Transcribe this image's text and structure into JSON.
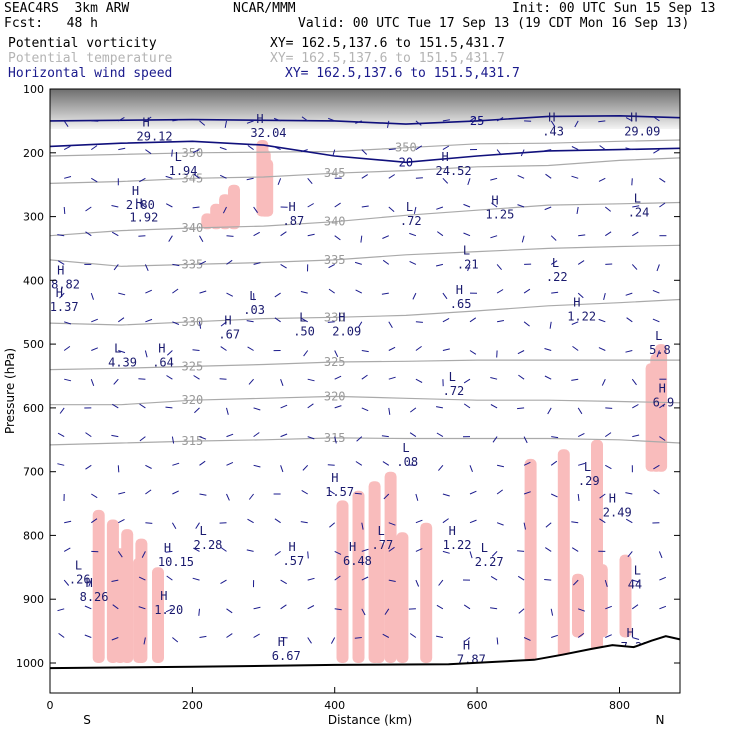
{
  "header": {
    "model": "SEAC4RS  3km ARW",
    "org": "NCAR/MMM",
    "init": "Init: 00 UTC Sun 15 Sep 13",
    "fcst": "Fcst:   48 h",
    "valid": "Valid: 00 UTC Tue 17 Sep 13 (19 CDT Mon 16 Sep 13)"
  },
  "legend": [
    {
      "name": "Potential vorticity",
      "xy": "XY= 162.5,137.6 to 151.5,431.7",
      "color": "#000000"
    },
    {
      "name": "Potential temperature",
      "xy": "XY= 162.5,137.6 to 151.5,431.7",
      "color": "#b4b4b4"
    },
    {
      "name": "Horizontal wind speed",
      "xy": "XY= 162.5,137.6 to 151.5,431.7",
      "color": "#1a1a8c"
    }
  ],
  "chart_data": {
    "type": "cross-section",
    "xlabel": "Distance (km)",
    "ylabel": "Pressure (hPa)",
    "x_ticks": [
      0,
      200,
      400,
      600,
      800
    ],
    "y_ticks": [
      100,
      200,
      300,
      400,
      500,
      600,
      700,
      800,
      900,
      1000
    ],
    "xlim": [
      0,
      885
    ],
    "ylim": [
      1000,
      100
    ],
    "end_labels": {
      "left": "S",
      "right": "N"
    },
    "theta_contours": [
      {
        "label": "315",
        "points": [
          [
            0,
            658
          ],
          [
            100,
            655
          ],
          [
            200,
            652
          ],
          [
            300,
            650
          ],
          [
            400,
            647
          ],
          [
            500,
            648
          ],
          [
            600,
            648
          ],
          [
            700,
            648
          ],
          [
            800,
            650
          ],
          [
            885,
            655
          ]
        ]
      },
      {
        "label": "320",
        "points": [
          [
            0,
            595
          ],
          [
            100,
            595
          ],
          [
            200,
            588
          ],
          [
            300,
            585
          ],
          [
            400,
            582
          ],
          [
            500,
            585
          ],
          [
            600,
            588
          ],
          [
            700,
            588
          ],
          [
            800,
            590
          ],
          [
            885,
            592
          ]
        ]
      },
      {
        "label": "325",
        "points": [
          [
            0,
            540
          ],
          [
            100,
            538
          ],
          [
            200,
            535
          ],
          [
            300,
            532
          ],
          [
            400,
            528
          ],
          [
            500,
            527
          ],
          [
            600,
            525
          ],
          [
            700,
            525
          ],
          [
            800,
            525
          ],
          [
            885,
            525
          ]
        ]
      },
      {
        "label": "330",
        "points": [
          [
            0,
            467
          ],
          [
            100,
            470
          ],
          [
            200,
            465
          ],
          [
            300,
            460
          ],
          [
            400,
            458
          ],
          [
            500,
            455
          ],
          [
            600,
            448
          ],
          [
            700,
            440
          ],
          [
            800,
            435
          ],
          [
            885,
            430
          ]
        ]
      },
      {
        "label": "335",
        "points": [
          [
            0,
            368
          ],
          [
            100,
            378
          ],
          [
            200,
            375
          ],
          [
            300,
            372
          ],
          [
            400,
            368
          ],
          [
            500,
            360
          ],
          [
            600,
            355
          ],
          [
            700,
            350
          ],
          [
            800,
            347
          ],
          [
            885,
            345
          ]
        ]
      },
      {
        "label": "340",
        "points": [
          [
            0,
            330
          ],
          [
            100,
            322
          ],
          [
            200,
            318
          ],
          [
            300,
            315
          ],
          [
            400,
            308
          ],
          [
            500,
            298
          ],
          [
            600,
            290
          ],
          [
            700,
            282
          ],
          [
            800,
            280
          ],
          [
            885,
            278
          ]
        ]
      },
      {
        "label": "345",
        "points": [
          [
            0,
            248
          ],
          [
            100,
            245
          ],
          [
            200,
            240
          ],
          [
            300,
            238
          ],
          [
            400,
            232
          ],
          [
            500,
            228
          ],
          [
            600,
            222
          ],
          [
            700,
            220
          ],
          [
            800,
            212
          ],
          [
            885,
            208
          ]
        ]
      },
      {
        "label": "350",
        "points": [
          [
            0,
            205
          ],
          [
            200,
            200
          ],
          [
            400,
            198
          ],
          [
            500,
            192
          ],
          [
            600,
            186
          ],
          [
            700,
            185
          ],
          [
            800,
            182
          ],
          [
            885,
            180
          ]
        ]
      }
    ],
    "wind_contours": [
      {
        "label": "20",
        "points": [
          [
            0,
            190
          ],
          [
            100,
            185
          ],
          [
            200,
            182
          ],
          [
            300,
            188
          ],
          [
            400,
            205
          ],
          [
            500,
            215
          ],
          [
            600,
            205
          ],
          [
            700,
            197
          ],
          [
            800,
            195
          ],
          [
            885,
            193
          ]
        ]
      },
      {
        "label": "25",
        "points": [
          [
            0,
            150
          ],
          [
            200,
            148
          ],
          [
            400,
            150
          ],
          [
            500,
            155
          ],
          [
            600,
            150
          ],
          [
            700,
            143
          ],
          [
            800,
            142
          ],
          [
            885,
            145
          ]
        ]
      }
    ],
    "extrema": [
      {
        "kind": "H",
        "value": "29.12",
        "x": 130,
        "p": 178
      },
      {
        "kind": "H",
        "value": "32.04",
        "x": 290,
        "p": 172
      },
      {
        "kind": "L",
        "value": "1.94",
        "x": 175,
        "p": 232
      },
      {
        "kind": "H",
        "value": "24.52",
        "x": 550,
        "p": 232
      },
      {
        "kind": "H",
        "value": ".43",
        "x": 700,
        "p": 170
      },
      {
        "kind": "H",
        "value": "29.09",
        "x": 815,
        "p": 170
      },
      {
        "kind": "H",
        "value": "2.80",
        "x": 115,
        "p": 285
      },
      {
        "kind": "H",
        "value": "1.92",
        "x": 120,
        "p": 305
      },
      {
        "kind": "H",
        "value": ".87",
        "x": 335,
        "p": 310
      },
      {
        "kind": "L",
        "value": ".72",
        "x": 500,
        "p": 310
      },
      {
        "kind": "H",
        "value": "1.25",
        "x": 620,
        "p": 300
      },
      {
        "kind": "L",
        "value": ".24",
        "x": 820,
        "p": 297
      },
      {
        "kind": "L",
        "value": ".21",
        "x": 580,
        "p": 378
      },
      {
        "kind": "L",
        "value": ".22",
        "x": 705,
        "p": 398
      },
      {
        "kind": "H",
        "value": "8.82",
        "x": 10,
        "p": 410
      },
      {
        "kind": "H",
        "value": "1.37",
        "x": 8,
        "p": 445
      },
      {
        "kind": "L",
        "value": ".03",
        "x": 280,
        "p": 450
      },
      {
        "kind": "H",
        "value": ".65",
        "x": 570,
        "p": 440
      },
      {
        "kind": "H",
        "value": "1.22",
        "x": 735,
        "p": 460
      },
      {
        "kind": "H",
        "value": ".67",
        "x": 245,
        "p": 488
      },
      {
        "kind": "L",
        "value": ".50",
        "x": 350,
        "p": 483
      },
      {
        "kind": "H",
        "value": "2.09",
        "x": 405,
        "p": 483
      },
      {
        "kind": "L",
        "value": "4.39",
        "x": 90,
        "p": 532
      },
      {
        "kind": "H",
        "value": ".64",
        "x": 152,
        "p": 532
      },
      {
        "kind": "L",
        "value": "5.8",
        "x": 850,
        "p": 512
      },
      {
        "kind": "L",
        "value": ".72",
        "x": 560,
        "p": 577
      },
      {
        "kind": "H",
        "value": "6.9",
        "x": 855,
        "p": 595
      },
      {
        "kind": "L",
        "value": ".08",
        "x": 495,
        "p": 688
      },
      {
        "kind": "H",
        "value": "1.57",
        "x": 395,
        "p": 735
      },
      {
        "kind": "L",
        "value": ".29",
        "x": 750,
        "p": 718
      },
      {
        "kind": "H",
        "value": "2.49",
        "x": 785,
        "p": 767
      },
      {
        "kind": "L",
        "value": "2.28",
        "x": 210,
        "p": 818
      },
      {
        "kind": "L",
        "value": ".77",
        "x": 460,
        "p": 818
      },
      {
        "kind": "H",
        "value": "1.22",
        "x": 560,
        "p": 818
      },
      {
        "kind": "H",
        "value": "10.15",
        "x": 160,
        "p": 845
      },
      {
        "kind": "H",
        "value": ".57",
        "x": 335,
        "p": 843
      },
      {
        "kind": "H",
        "value": "6.48",
        "x": 420,
        "p": 843
      },
      {
        "kind": "L",
        "value": "2.27",
        "x": 605,
        "p": 845
      },
      {
        "kind": "L",
        "value": ".26",
        "x": 35,
        "p": 872
      },
      {
        "kind": "H",
        "value": "8.26",
        "x": 50,
        "p": 900
      },
      {
        "kind": "L",
        "value": "44",
        "x": 820,
        "p": 880
      },
      {
        "kind": "H",
        "value": "1.20",
        "x": 155,
        "p": 920
      },
      {
        "kind": "H",
        "value": "6.67",
        "x": 320,
        "p": 992
      },
      {
        "kind": "H",
        "value": "7.87",
        "x": 580,
        "p": 998
      },
      {
        "kind": "H",
        "value": "7.22",
        "x": 810,
        "p": 978
      }
    ],
    "terrain": [
      [
        0,
        1008
      ],
      [
        200,
        1006
      ],
      [
        400,
        1003
      ],
      [
        560,
        1002
      ],
      [
        680,
        995
      ],
      [
        720,
        987
      ],
      [
        760,
        978
      ],
      [
        790,
        972
      ],
      [
        820,
        975
      ],
      [
        845,
        965
      ],
      [
        865,
        958
      ],
      [
        885,
        963
      ]
    ]
  }
}
